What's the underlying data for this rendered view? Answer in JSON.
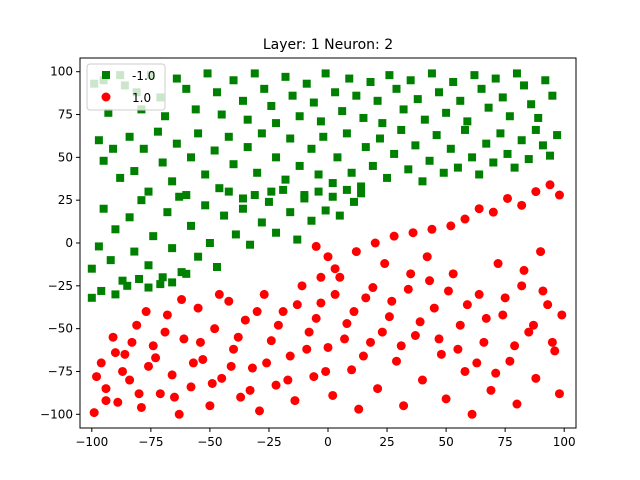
{
  "chart_data": {
    "type": "scatter",
    "title": "Layer: 1 Neuron: 2",
    "xlabel": "",
    "ylabel": "",
    "xlim": [
      -105,
      105
    ],
    "ylim": [
      -108,
      108
    ],
    "xticks": [
      -100,
      -75,
      -50,
      -25,
      0,
      25,
      50,
      75,
      100
    ],
    "yticks": [
      -100,
      -75,
      -50,
      -25,
      0,
      25,
      50,
      75,
      100
    ],
    "tick_labels": {
      "x": [
        "−100",
        "−75",
        "−50",
        "−25",
        "0",
        "25",
        "50",
        "75",
        "100"
      ],
      "y": [
        "−100",
        "−75",
        "−50",
        "−25",
        "0",
        "25",
        "50",
        "75",
        "100"
      ]
    },
    "grid": false,
    "legend_position": "top-left",
    "boundary": {
      "slope": 0.4,
      "intercept": 10
    },
    "series": [
      {
        "name": "-1.0",
        "marker": "square",
        "color": "#008000",
        "points": [
          [
            -99,
            93
          ],
          [
            -95,
            95
          ],
          [
            -93,
            76
          ],
          [
            -88,
            98
          ],
          [
            -86,
            92
          ],
          [
            -81,
            88
          ],
          [
            -79,
            78
          ],
          [
            -75,
            98
          ],
          [
            -71,
            85
          ],
          [
            -69,
            74
          ],
          [
            -64,
            96
          ],
          [
            -60,
            90
          ],
          [
            -56,
            78
          ],
          [
            -51,
            99
          ],
          [
            -47,
            88
          ],
          [
            -45,
            75
          ],
          [
            -40,
            95
          ],
          [
            -36,
            83
          ],
          [
            -34,
            72
          ],
          [
            -31,
            99
          ],
          [
            -27,
            90
          ],
          [
            -24,
            80
          ],
          [
            -22,
            70
          ],
          [
            -18,
            97
          ],
          [
            -15,
            86
          ],
          [
            -12,
            74
          ],
          [
            -9,
            93
          ],
          [
            -6,
            82
          ],
          [
            -3,
            71
          ],
          [
            -1,
            99
          ],
          [
            3,
            88
          ],
          [
            6,
            77
          ],
          [
            9,
            96
          ],
          [
            12,
            86
          ],
          [
            15,
            73
          ],
          [
            18,
            94
          ],
          [
            21,
            83
          ],
          [
            23,
            70
          ],
          [
            26,
            98
          ],
          [
            29,
            90
          ],
          [
            32,
            78
          ],
          [
            35,
            95
          ],
          [
            38,
            84
          ],
          [
            41,
            72
          ],
          [
            44,
            99
          ],
          [
            47,
            88
          ],
          [
            50,
            76
          ],
          [
            53,
            94
          ],
          [
            56,
            83
          ],
          [
            59,
            71
          ],
          [
            62,
            98
          ],
          [
            65,
            90
          ],
          [
            68,
            79
          ],
          [
            71,
            96
          ],
          [
            74,
            85
          ],
          [
            77,
            74
          ],
          [
            80,
            99
          ],
          [
            83,
            92
          ],
          [
            86,
            81
          ],
          [
            89,
            73
          ],
          [
            92,
            95
          ],
          [
            95,
            86
          ],
          [
            -97,
            60
          ],
          [
            -95,
            48
          ],
          [
            -91,
            55
          ],
          [
            -88,
            38
          ],
          [
            -84,
            62
          ],
          [
            -82,
            42
          ],
          [
            -78,
            55
          ],
          [
            -76,
            30
          ],
          [
            -72,
            65
          ],
          [
            -70,
            47
          ],
          [
            -66,
            36
          ],
          [
            -64,
            58
          ],
          [
            -60,
            28
          ],
          [
            -58,
            50
          ],
          [
            -55,
            64
          ],
          [
            -52,
            40
          ],
          [
            -48,
            54
          ],
          [
            -46,
            32
          ],
          [
            -42,
            62
          ],
          [
            -40,
            46
          ],
          [
            -36,
            26
          ],
          [
            -34,
            56
          ],
          [
            -30,
            41
          ],
          [
            -28,
            64
          ],
          [
            -24,
            30
          ],
          [
            -22,
            50
          ],
          [
            -18,
            37
          ],
          [
            -16,
            61
          ],
          [
            -12,
            45
          ],
          [
            -10,
            28
          ],
          [
            -7,
            55
          ],
          [
            -4,
            40
          ],
          [
            -2,
            62
          ],
          [
            2,
            35
          ],
          [
            4,
            50
          ],
          [
            8,
            64
          ],
          [
            10,
            41
          ],
          [
            14,
            33
          ],
          [
            16,
            56
          ],
          [
            19,
            45
          ],
          [
            22,
            61
          ],
          [
            25,
            38
          ],
          [
            28,
            52
          ],
          [
            31,
            66
          ],
          [
            34,
            43
          ],
          [
            37,
            57
          ],
          [
            40,
            36
          ],
          [
            43,
            48
          ],
          [
            46,
            63
          ],
          [
            49,
            41
          ],
          [
            52,
            55
          ],
          [
            55,
            44
          ],
          [
            58,
            66
          ],
          [
            61,
            50
          ],
          [
            64,
            40
          ],
          [
            67,
            58
          ],
          [
            70,
            47
          ],
          [
            73,
            64
          ],
          [
            76,
            52
          ],
          [
            79,
            44
          ],
          [
            82,
            60
          ],
          [
            85,
            49
          ],
          [
            88,
            66
          ],
          [
            91,
            57
          ],
          [
            94,
            51
          ],
          [
            97,
            63
          ],
          [
            -100,
            -15
          ],
          [
            -97,
            -2
          ],
          [
            -95,
            20
          ],
          [
            -92,
            -10
          ],
          [
            -90,
            8
          ],
          [
            -87,
            -22
          ],
          [
            -84,
            15
          ],
          [
            -82,
            -5
          ],
          [
            -79,
            25
          ],
          [
            -76,
            -13
          ],
          [
            -74,
            4
          ],
          [
            -71,
            -24
          ],
          [
            -68,
            18
          ],
          [
            -66,
            -3
          ],
          [
            -63,
            27
          ],
          [
            -60,
            -18
          ],
          [
            -58,
            10
          ],
          [
            -55,
            -8
          ],
          [
            -52,
            22
          ],
          [
            -50,
            0
          ],
          [
            -47,
            -14
          ],
          [
            -44,
            16
          ],
          [
            -42,
            30
          ],
          [
            -39,
            5
          ],
          [
            -36,
            20
          ],
          [
            -33,
            -1
          ],
          [
            -31,
            28
          ],
          [
            -28,
            12
          ],
          [
            -25,
            24
          ],
          [
            -22,
            6
          ],
          [
            -19,
            31
          ],
          [
            -16,
            18
          ],
          [
            -13,
            2
          ],
          [
            -10,
            26
          ],
          [
            -7,
            13
          ],
          [
            -4,
            30
          ],
          [
            -1,
            19
          ],
          [
            2,
            27
          ],
          [
            5,
            16
          ],
          [
            8,
            31
          ],
          [
            11,
            24
          ],
          [
            14,
            29
          ],
          [
            -100,
            -32
          ],
          [
            -96,
            -28
          ],
          [
            -90,
            -30
          ],
          [
            -85,
            -25
          ],
          [
            -80,
            -21
          ],
          [
            -76,
            -26
          ],
          [
            -70,
            -20
          ],
          [
            -66,
            -23
          ],
          [
            -62,
            -17
          ]
        ]
      },
      {
        "name": "1.0",
        "marker": "circle",
        "color": "#ff0000",
        "points": [
          [
            -99,
            -99
          ],
          [
            -96,
            -70
          ],
          [
            -94,
            -85
          ],
          [
            -91,
            -55
          ],
          [
            -89,
            -93
          ],
          [
            -86,
            -65
          ],
          [
            -84,
            -80
          ],
          [
            -81,
            -48
          ],
          [
            -79,
            -96
          ],
          [
            -76,
            -72
          ],
          [
            -74,
            -60
          ],
          [
            -71,
            -88
          ],
          [
            -68,
            -42
          ],
          [
            -66,
            -77
          ],
          [
            -63,
            -100
          ],
          [
            -61,
            -56
          ],
          [
            -58,
            -84
          ],
          [
            -55,
            -38
          ],
          [
            -53,
            -68
          ],
          [
            -50,
            -95
          ],
          [
            -48,
            -50
          ],
          [
            -45,
            -79
          ],
          [
            -42,
            -34
          ],
          [
            -40,
            -62
          ],
          [
            -37,
            -90
          ],
          [
            -35,
            -45
          ],
          [
            -32,
            -73
          ],
          [
            -29,
            -98
          ],
          [
            -27,
            -30
          ],
          [
            -24,
            -57
          ],
          [
            -22,
            -83
          ],
          [
            -19,
            -40
          ],
          [
            -16,
            -66
          ],
          [
            -14,
            -92
          ],
          [
            -11,
            -25
          ],
          [
            -8,
            -52
          ],
          [
            -6,
            -78
          ],
          [
            -3,
            -35
          ],
          [
            0,
            -61
          ],
          [
            2,
            -89
          ],
          [
            5,
            -20
          ],
          [
            8,
            -47
          ],
          [
            10,
            -74
          ],
          [
            13,
            -97
          ],
          [
            16,
            -32
          ],
          [
            18,
            -58
          ],
          [
            21,
            -85
          ],
          [
            24,
            -12
          ],
          [
            26,
            -43
          ],
          [
            29,
            -69
          ],
          [
            32,
            -95
          ],
          [
            34,
            -27
          ],
          [
            37,
            -54
          ],
          [
            40,
            -80
          ],
          [
            42,
            -8
          ],
          [
            45,
            -38
          ],
          [
            48,
            -65
          ],
          [
            50,
            -91
          ],
          [
            53,
            -18
          ],
          [
            56,
            -48
          ],
          [
            58,
            -75
          ],
          [
            61,
            -100
          ],
          [
            64,
            -30
          ],
          [
            66,
            -58
          ],
          [
            69,
            -86
          ],
          [
            72,
            -12
          ],
          [
            74,
            -42
          ],
          [
            77,
            -69
          ],
          [
            80,
            -94
          ],
          [
            82,
            -25
          ],
          [
            85,
            -52
          ],
          [
            88,
            -79
          ],
          [
            90,
            -5
          ],
          [
            93,
            -36
          ],
          [
            96,
            -63
          ],
          [
            98,
            -88
          ],
          [
            -98,
            -78
          ],
          [
            -94,
            -92
          ],
          [
            -90,
            -64
          ],
          [
            -87,
            -75
          ],
          [
            -83,
            -58
          ],
          [
            -80,
            -88
          ],
          [
            -77,
            -40
          ],
          [
            -73,
            -67
          ],
          [
            -69,
            -52
          ],
          [
            -65,
            -90
          ],
          [
            -62,
            -33
          ],
          [
            -57,
            -70
          ],
          [
            -54,
            -58
          ],
          [
            -49,
            -82
          ],
          [
            -46,
            -30
          ],
          [
            -41,
            -72
          ],
          [
            -38,
            -55
          ],
          [
            -33,
            -86
          ],
          [
            -30,
            -40
          ],
          [
            -26,
            -70
          ],
          [
            -21,
            -48
          ],
          [
            -17,
            -80
          ],
          [
            -13,
            -36
          ],
          [
            -9,
            -62
          ],
          [
            -5,
            -44
          ],
          [
            -1,
            -75
          ],
          [
            3,
            -30
          ],
          [
            7,
            -56
          ],
          [
            11,
            -40
          ],
          [
            15,
            -66
          ],
          [
            19,
            -26
          ],
          [
            23,
            -52
          ],
          [
            27,
            -34
          ],
          [
            31,
            -60
          ],
          [
            35,
            -18
          ],
          [
            39,
            -46
          ],
          [
            43,
            -22
          ],
          [
            47,
            -56
          ],
          [
            51,
            -28
          ],
          [
            55,
            -62
          ],
          [
            59,
            -36
          ],
          [
            63,
            -70
          ],
          [
            67,
            -44
          ],
          [
            71,
            -76
          ],
          [
            75,
            -32
          ],
          [
            79,
            -60
          ],
          [
            83,
            -16
          ],
          [
            87,
            -48
          ],
          [
            91,
            -28
          ],
          [
            95,
            -58
          ],
          [
            99,
            -42
          ],
          [
            -3,
            -20
          ],
          [
            0,
            -8
          ],
          [
            3,
            -15
          ],
          [
            -5,
            -2
          ],
          [
            12,
            -5
          ],
          [
            20,
            0
          ],
          [
            28,
            4
          ],
          [
            36,
            6
          ],
          [
            44,
            8
          ],
          [
            52,
            10
          ],
          [
            58,
            14
          ],
          [
            64,
            20
          ],
          [
            70,
            18
          ],
          [
            76,
            26
          ],
          [
            82,
            22
          ],
          [
            88,
            30
          ],
          [
            94,
            34
          ],
          [
            98,
            28
          ]
        ]
      }
    ]
  }
}
